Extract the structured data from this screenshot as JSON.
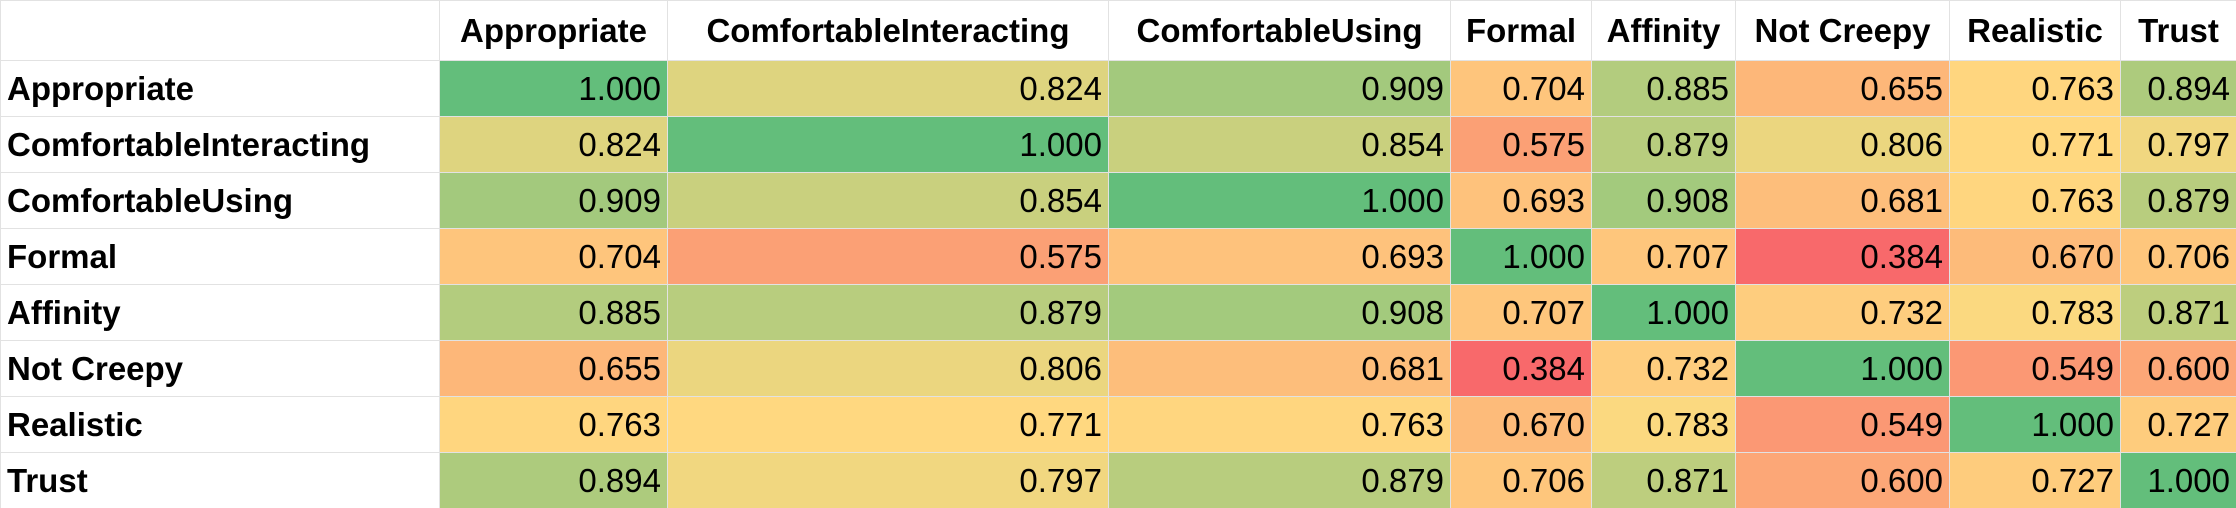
{
  "table": {
    "columns": [
      "Appropriate",
      "ComfortableInteracting",
      "ComfortableUsing",
      "Formal",
      "Affinity",
      "Not Creepy",
      "Realistic",
      "Trust"
    ],
    "rows": [
      {
        "label": "Appropriate",
        "values": [
          "1.000",
          "0.824",
          "0.909",
          "0.704",
          "0.885",
          "0.655",
          "0.763",
          "0.894"
        ]
      },
      {
        "label": "ComfortableInteracting",
        "values": [
          "0.824",
          "1.000",
          "0.854",
          "0.575",
          "0.879",
          "0.806",
          "0.771",
          "0.797"
        ]
      },
      {
        "label": "ComfortableUsing",
        "values": [
          "0.909",
          "0.854",
          "1.000",
          "0.693",
          "0.908",
          "0.681",
          "0.763",
          "0.879"
        ]
      },
      {
        "label": "Formal",
        "values": [
          "0.704",
          "0.575",
          "0.693",
          "1.000",
          "0.707",
          "0.384",
          "0.670",
          "0.706"
        ]
      },
      {
        "label": "Affinity",
        "values": [
          "0.885",
          "0.879",
          "0.908",
          "0.707",
          "1.000",
          "0.732",
          "0.783",
          "0.871"
        ]
      },
      {
        "label": "Not Creepy",
        "values": [
          "0.655",
          "0.806",
          "0.681",
          "0.384",
          "0.732",
          "1.000",
          "0.549",
          "0.600"
        ]
      },
      {
        "label": "Realistic",
        "values": [
          "0.763",
          "0.771",
          "0.763",
          "0.670",
          "0.783",
          "0.549",
          "1.000",
          "0.727"
        ]
      },
      {
        "label": "Trust",
        "values": [
          "0.894",
          "0.797",
          "0.879",
          "0.706",
          "0.871",
          "0.600",
          "0.727",
          "1.000"
        ]
      }
    ]
  }
}
